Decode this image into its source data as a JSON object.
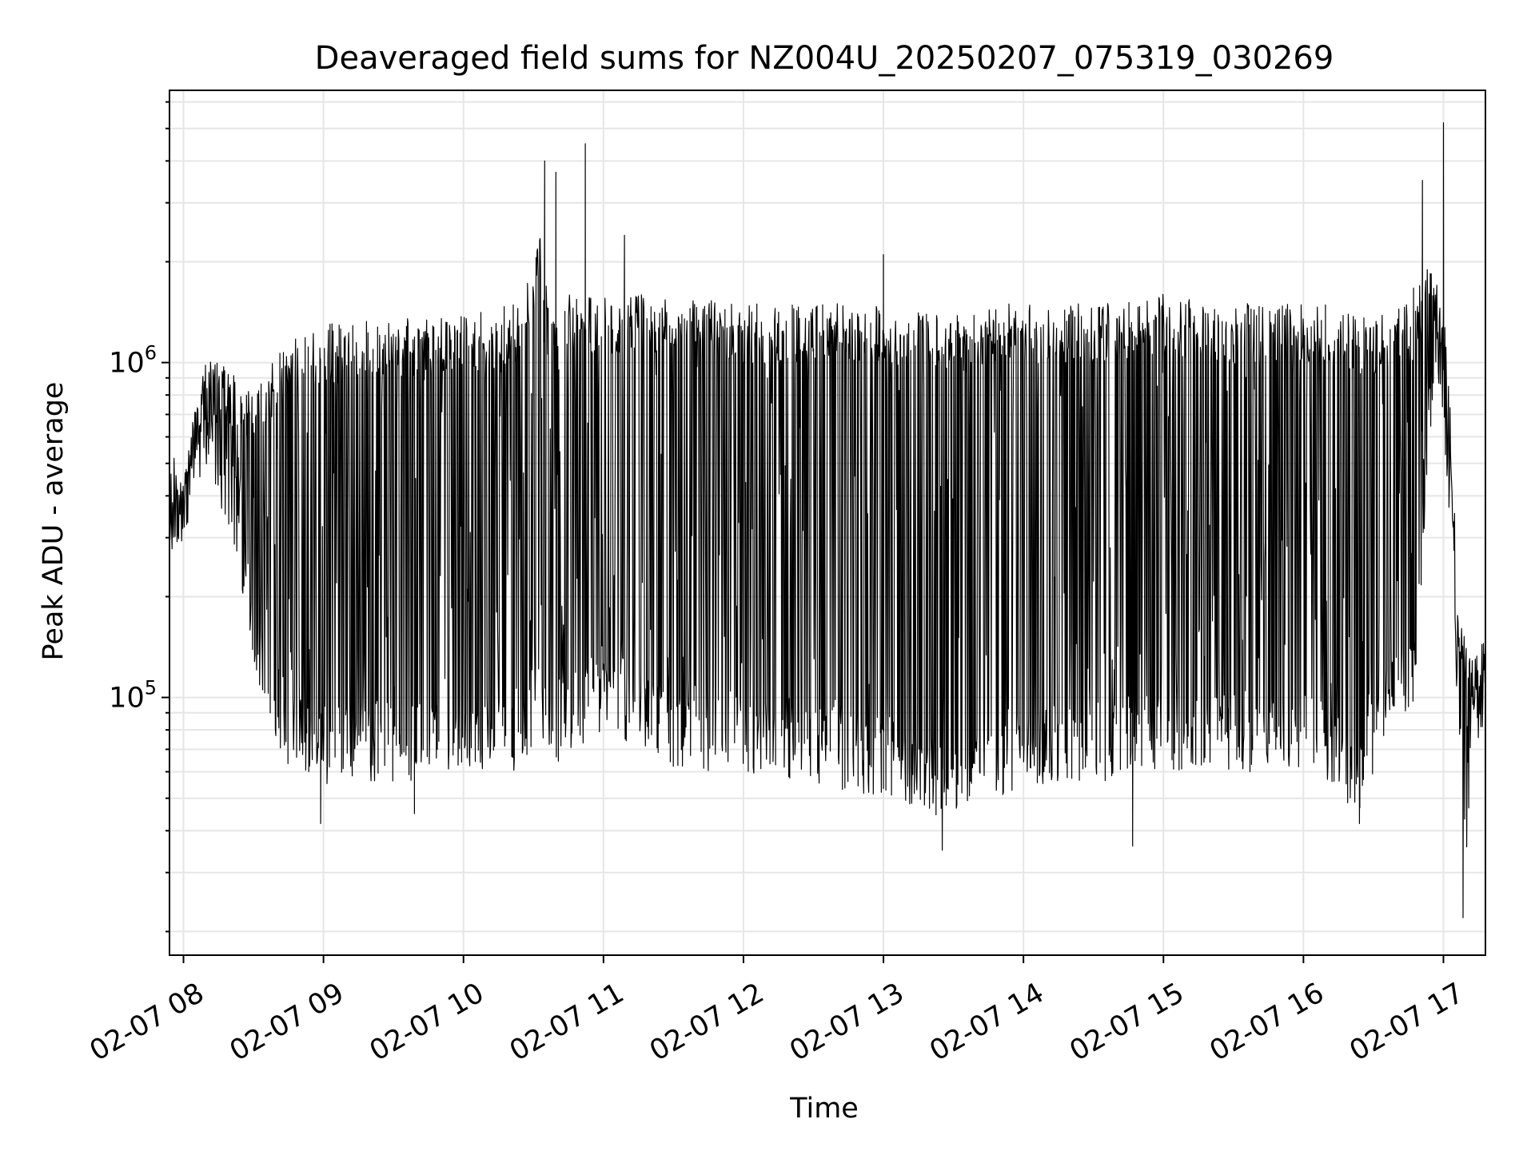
{
  "chart_data": {
    "type": "line",
    "title": "Deaveraged field sums for NZ004U_20250207_075319_030269",
    "xlabel": "Time",
    "ylabel": "Peak ADU - average",
    "yscale": "log",
    "grid": true,
    "x_tick_labels": [
      "02-07 08",
      "02-07 09",
      "02-07 10",
      "02-07 11",
      "02-07 12",
      "02-07 13",
      "02-07 14",
      "02-07 15",
      "02-07 16",
      "02-07 17"
    ],
    "x_tick_hours": [
      8,
      9,
      10,
      11,
      12,
      13,
      14,
      15,
      16,
      17
    ],
    "xlim_hours": [
      7.9,
      17.3
    ],
    "y_ticks": [
      {
        "value": 100000,
        "base": "10",
        "exp": "5"
      },
      {
        "value": 1000000,
        "base": "10",
        "exp": "6"
      }
    ],
    "ylim": [
      17000,
      6500000
    ],
    "series_color": "#000000",
    "envelope_hours": [
      7.9,
      8.0,
      8.15,
      8.4,
      8.5,
      8.75,
      9.0,
      9.5,
      10.0,
      10.4,
      10.55,
      10.6,
      11.0,
      11.5,
      12.0,
      12.5,
      13.0,
      13.3,
      13.45,
      13.6,
      14.0,
      14.5,
      15.0,
      15.5,
      16.0,
      16.25,
      16.4,
      16.6,
      16.8,
      16.9,
      17.0,
      17.05,
      17.1,
      17.15,
      17.2,
      17.3
    ],
    "envelope_upper": [
      400000,
      450000,
      1100000,
      900000,
      800000,
      1200000,
      1300000,
      1350000,
      1400000,
      1500000,
      2500000,
      1600000,
      1600000,
      1600000,
      1500000,
      1500000,
      1500000,
      1400000,
      1400000,
      1500000,
      1500000,
      1500000,
      1600000,
      1500000,
      1500000,
      1500000,
      1400000,
      1400000,
      1700000,
      2000000,
      1500000,
      700000,
      250000,
      150000,
      130000,
      150000
    ],
    "envelope_lower": [
      300000,
      300000,
      500000,
      250000,
      100000,
      60000,
      55000,
      55000,
      60000,
      55000,
      80000,
      60000,
      80000,
      60000,
      60000,
      55000,
      50000,
      45000,
      38000,
      45000,
      55000,
      55000,
      60000,
      60000,
      60000,
      50000,
      45000,
      70000,
      100000,
      600000,
      600000,
      300000,
      80000,
      25000,
      55000,
      90000
    ],
    "spikes": [
      {
        "hour": 10.58,
        "value": 4000000
      },
      {
        "hour": 10.66,
        "value": 3700000
      },
      {
        "hour": 10.87,
        "value": 4500000
      },
      {
        "hour": 11.15,
        "value": 2400000
      },
      {
        "hour": 13.0,
        "value": 2100000
      },
      {
        "hour": 16.85,
        "value": 3500000
      },
      {
        "hour": 17.0,
        "value": 5200000
      },
      {
        "hour": 13.42,
        "value": 35000
      },
      {
        "hour": 14.78,
        "value": 36000
      },
      {
        "hour": 16.4,
        "value": 42000
      },
      {
        "hour": 17.14,
        "value": 22000
      },
      {
        "hour": 8.98,
        "value": 42000
      },
      {
        "hour": 9.65,
        "value": 45000
      }
    ]
  }
}
